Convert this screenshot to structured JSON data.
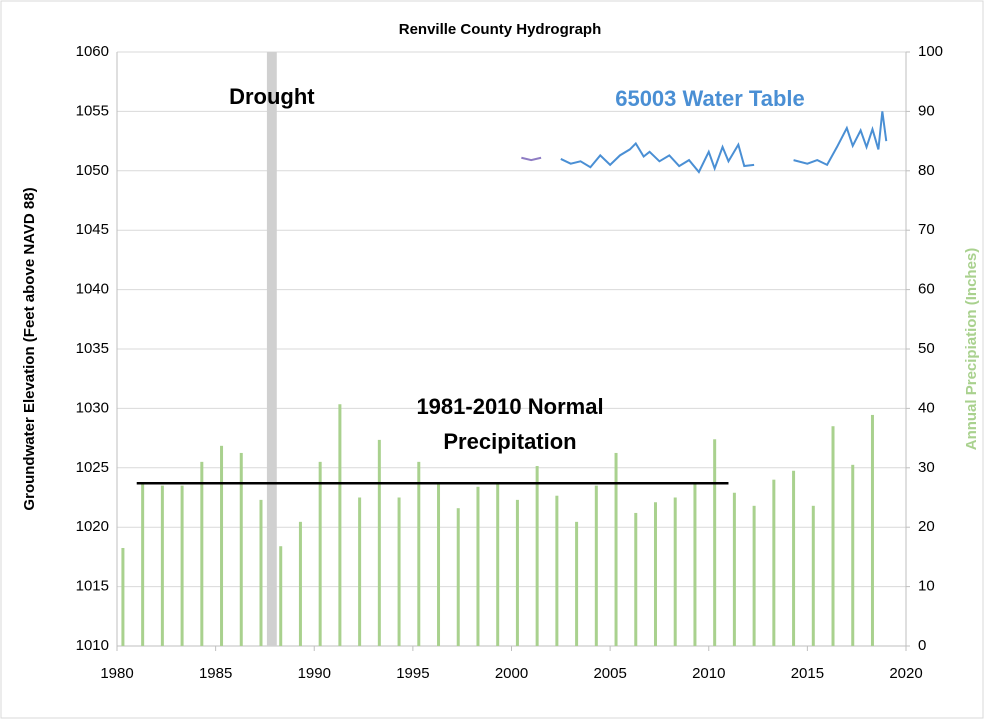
{
  "chart_data": {
    "type": "combo",
    "title": "Renville County Hydrograph",
    "y_label": "Groundwater Elevation (Feet above NAVD 88)",
    "y2_label": "Annual Precipiation (Inches)",
    "xlim": [
      1980,
      2020
    ],
    "xticks": [
      1980,
      1985,
      1990,
      1995,
      2000,
      2005,
      2010,
      2015,
      2020
    ],
    "ylim": [
      1010,
      1060
    ],
    "yticks": [
      1010,
      1015,
      1020,
      1025,
      1030,
      1035,
      1040,
      1045,
      1050,
      1055,
      1060
    ],
    "y2lim": [
      0,
      100
    ],
    "y2ticks": [
      0,
      10,
      20,
      30,
      40,
      50,
      60,
      70,
      80,
      90,
      100
    ],
    "grid": true,
    "bands": [
      {
        "label": "Drought",
        "x": [
          1987.6,
          1988.1
        ],
        "color": "#d0d0d0"
      }
    ],
    "series": [
      {
        "type": "bar",
        "axis": "y2",
        "color": "#a9d18e",
        "x": [
          1980.3,
          1981.3,
          1982.3,
          1983.3,
          1984.3,
          1985.3,
          1986.3,
          1987.3,
          1988.3,
          1989.3,
          1990.3,
          1991.3,
          1992.3,
          1993.3,
          1994.3,
          1995.3,
          1996.3,
          1997.3,
          1998.3,
          1999.3,
          2000.3,
          2001.3,
          2002.3,
          2003.3,
          2004.3,
          2005.3,
          2006.3,
          2007.3,
          2008.3,
          2009.3,
          2010.3,
          2011.3,
          2012.3,
          2013.3,
          2014.3,
          2015.3,
          2016.3,
          2017.3,
          2018.3
        ],
        "values": [
          16.5,
          27.3,
          27,
          27,
          31,
          33.7,
          32.5,
          24.6,
          16.8,
          20.9,
          31,
          40.7,
          25,
          34.7,
          25,
          31,
          27.6,
          23.2,
          26.8,
          27.3,
          24.6,
          30.3,
          25.3,
          20.9,
          27,
          32.5,
          22.4,
          24.2,
          25,
          27.3,
          34.8,
          25.8,
          23.6,
          28,
          29.5,
          23.6,
          37,
          30.5,
          38.9
        ]
      },
      {
        "type": "line",
        "axis": "y2",
        "color": "#000000",
        "x": [
          1981,
          2011
        ],
        "values": [
          27.4,
          27.4
        ],
        "label": [
          "1981-2010 Normal",
          "Precipitation"
        ]
      },
      {
        "type": "line",
        "color": "#8e7cc3",
        "x": [
          2000.5,
          2001,
          2001.5
        ],
        "values": [
          1051.1,
          1050.9,
          1051.1
        ]
      },
      {
        "type": "line",
        "name": "65003 Water Table",
        "color": "#4a8fd4",
        "x": [
          2002.5,
          2003,
          2003.5,
          2004,
          2004.5,
          2005,
          2005.5,
          2006,
          2006.3,
          2006.7,
          2007,
          2007.5,
          2008,
          2008.5,
          2009,
          2009.5,
          2010,
          2010.3,
          2010.7,
          2011,
          2011.5,
          2011.8,
          2012.3,
          2013.3,
          2014.3,
          2015,
          2015.5,
          2016,
          2016.5,
          2017,
          2017.3,
          2017.7,
          2018,
          2018.3,
          2018.6,
          2018.8,
          2019
        ],
        "values": [
          1051.0,
          1050.6,
          1050.8,
          1050.3,
          1051.3,
          1050.5,
          1051.3,
          1051.8,
          1052.3,
          1051.2,
          1051.6,
          1050.8,
          1051.3,
          1050.4,
          1050.9,
          1049.9,
          1051.6,
          1050.2,
          1052.0,
          1050.8,
          1052.2,
          1050.4,
          1050.5,
          null,
          1050.9,
          1050.6,
          1050.9,
          1050.5,
          1052.0,
          1053.6,
          1052.1,
          1053.4,
          1052.0,
          1053.5,
          1051.8,
          1055.0,
          1052.5
        ]
      }
    ]
  }
}
